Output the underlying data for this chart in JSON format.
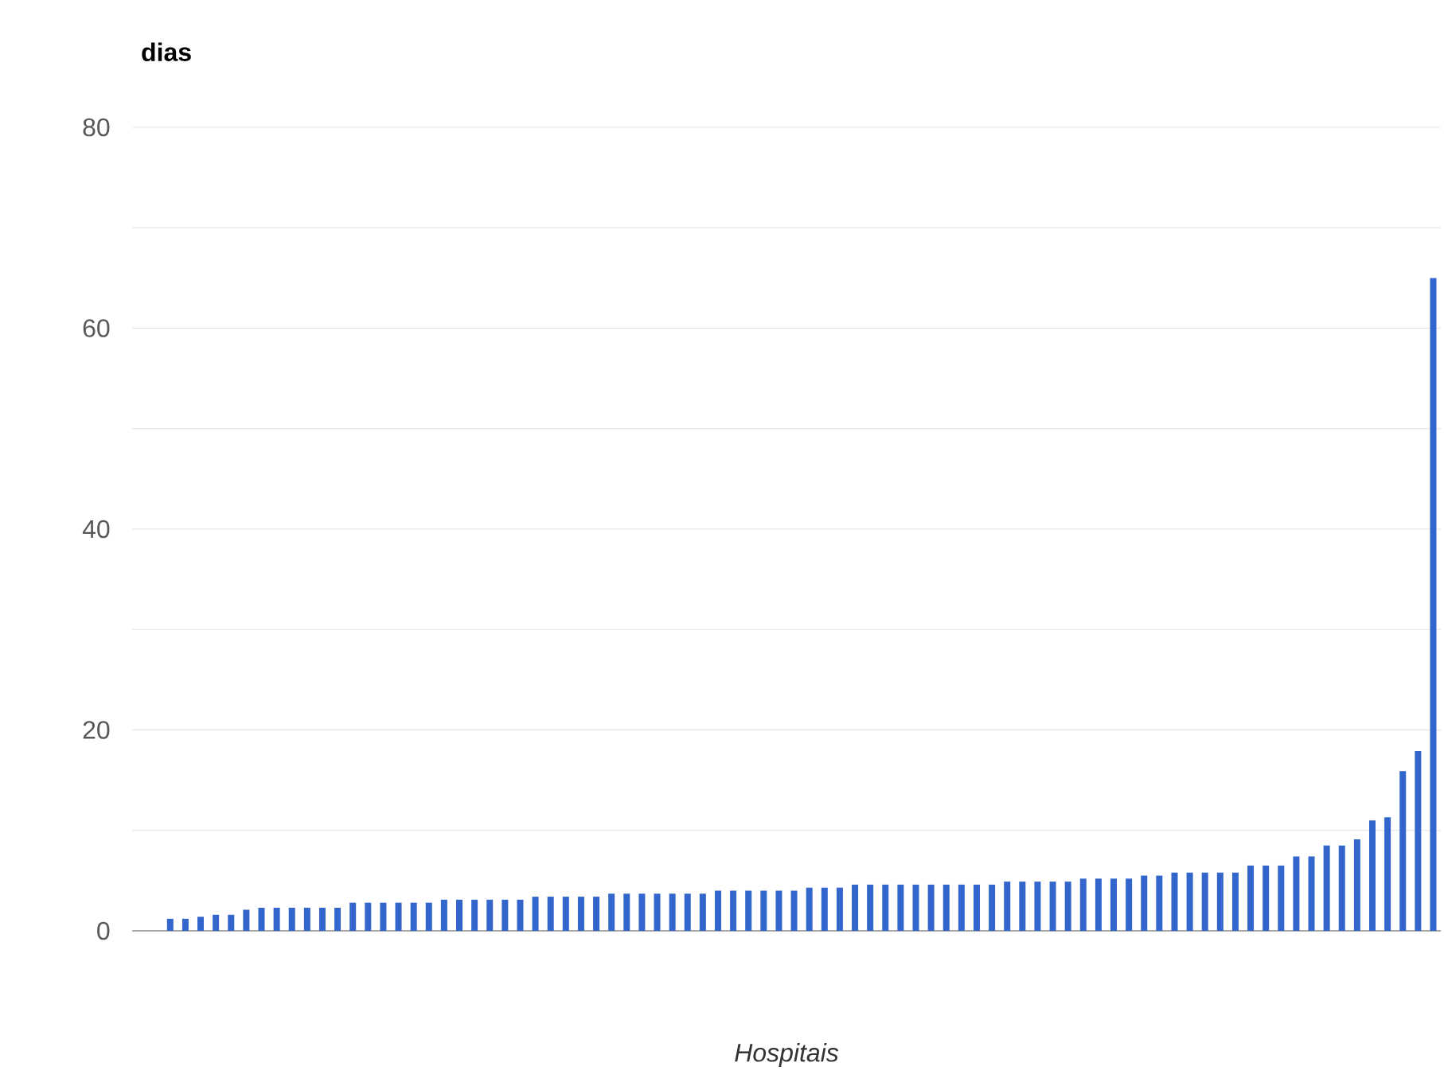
{
  "chart_data": {
    "type": "bar",
    "xlabel": "*Hospitais*",
    "ylabel": "**dias**",
    "categories": [
      null,
      null,
      null,
      null,
      null,
      null,
      null,
      null,
      null,
      null,
      null,
      null,
      null,
      null,
      null,
      null,
      null,
      null,
      null,
      null,
      null,
      null,
      null,
      null,
      null,
      null,
      null,
      null,
      null,
      null,
      null,
      null,
      null,
      null,
      null,
      null,
      null,
      null,
      null,
      null,
      null,
      null,
      null,
      null,
      null,
      null,
      null,
      null,
      null,
      null,
      null,
      null,
      null,
      null,
      null,
      null,
      null,
      null,
      null,
      null,
      null,
      null,
      null,
      null,
      null,
      null,
      null,
      null,
      null,
      null,
      null,
      null,
      null,
      null,
      null,
      null,
      null,
      null,
      null,
      null,
      null,
      null,
      null,
      null,
      null,
      null
    ],
    "values": [
      0,
      0,
      1.2,
      1.2,
      1.4,
      1.6,
      1.6,
      2.1,
      2.3,
      2.3,
      2.3,
      2.3,
      2.3,
      2.3,
      2.8,
      2.8,
      2.8,
      2.8,
      2.8,
      2.8,
      3.1,
      3.1,
      3.1,
      3.1,
      3.1,
      3.1,
      3.4,
      3.4,
      3.4,
      3.4,
      3.4,
      3.7,
      3.7,
      3.7,
      3.7,
      3.7,
      3.7,
      3.7,
      4.0,
      4.0,
      4.0,
      4.0,
      4.0,
      4.0,
      4.3,
      4.3,
      4.3,
      4.6,
      4.6,
      4.6,
      4.6,
      4.6,
      4.6,
      4.6,
      4.6,
      4.6,
      4.6,
      4.9,
      4.9,
      4.9,
      4.9,
      4.9,
      5.2,
      5.2,
      5.2,
      5.2,
      5.5,
      5.5,
      5.8,
      5.8,
      5.8,
      5.8,
      5.8,
      6.5,
      6.5,
      6.5,
      7.4,
      7.4,
      8.5,
      8.5,
      9.1,
      11.0,
      11.3,
      15.9,
      17.9,
      65
    ],
    "color": "#3366cc",
    "ylim": [
      0,
      80
    ],
    "yticks": [
      0,
      {
        "value": 10,
        "label": null
      },
      20,
      {
        "value": 30,
        "label": null
      },
      40,
      {
        "value": 50,
        "label": null
      },
      60,
      {
        "value": 70,
        "label": null
      },
      80
    ],
    "grid": "y"
  }
}
